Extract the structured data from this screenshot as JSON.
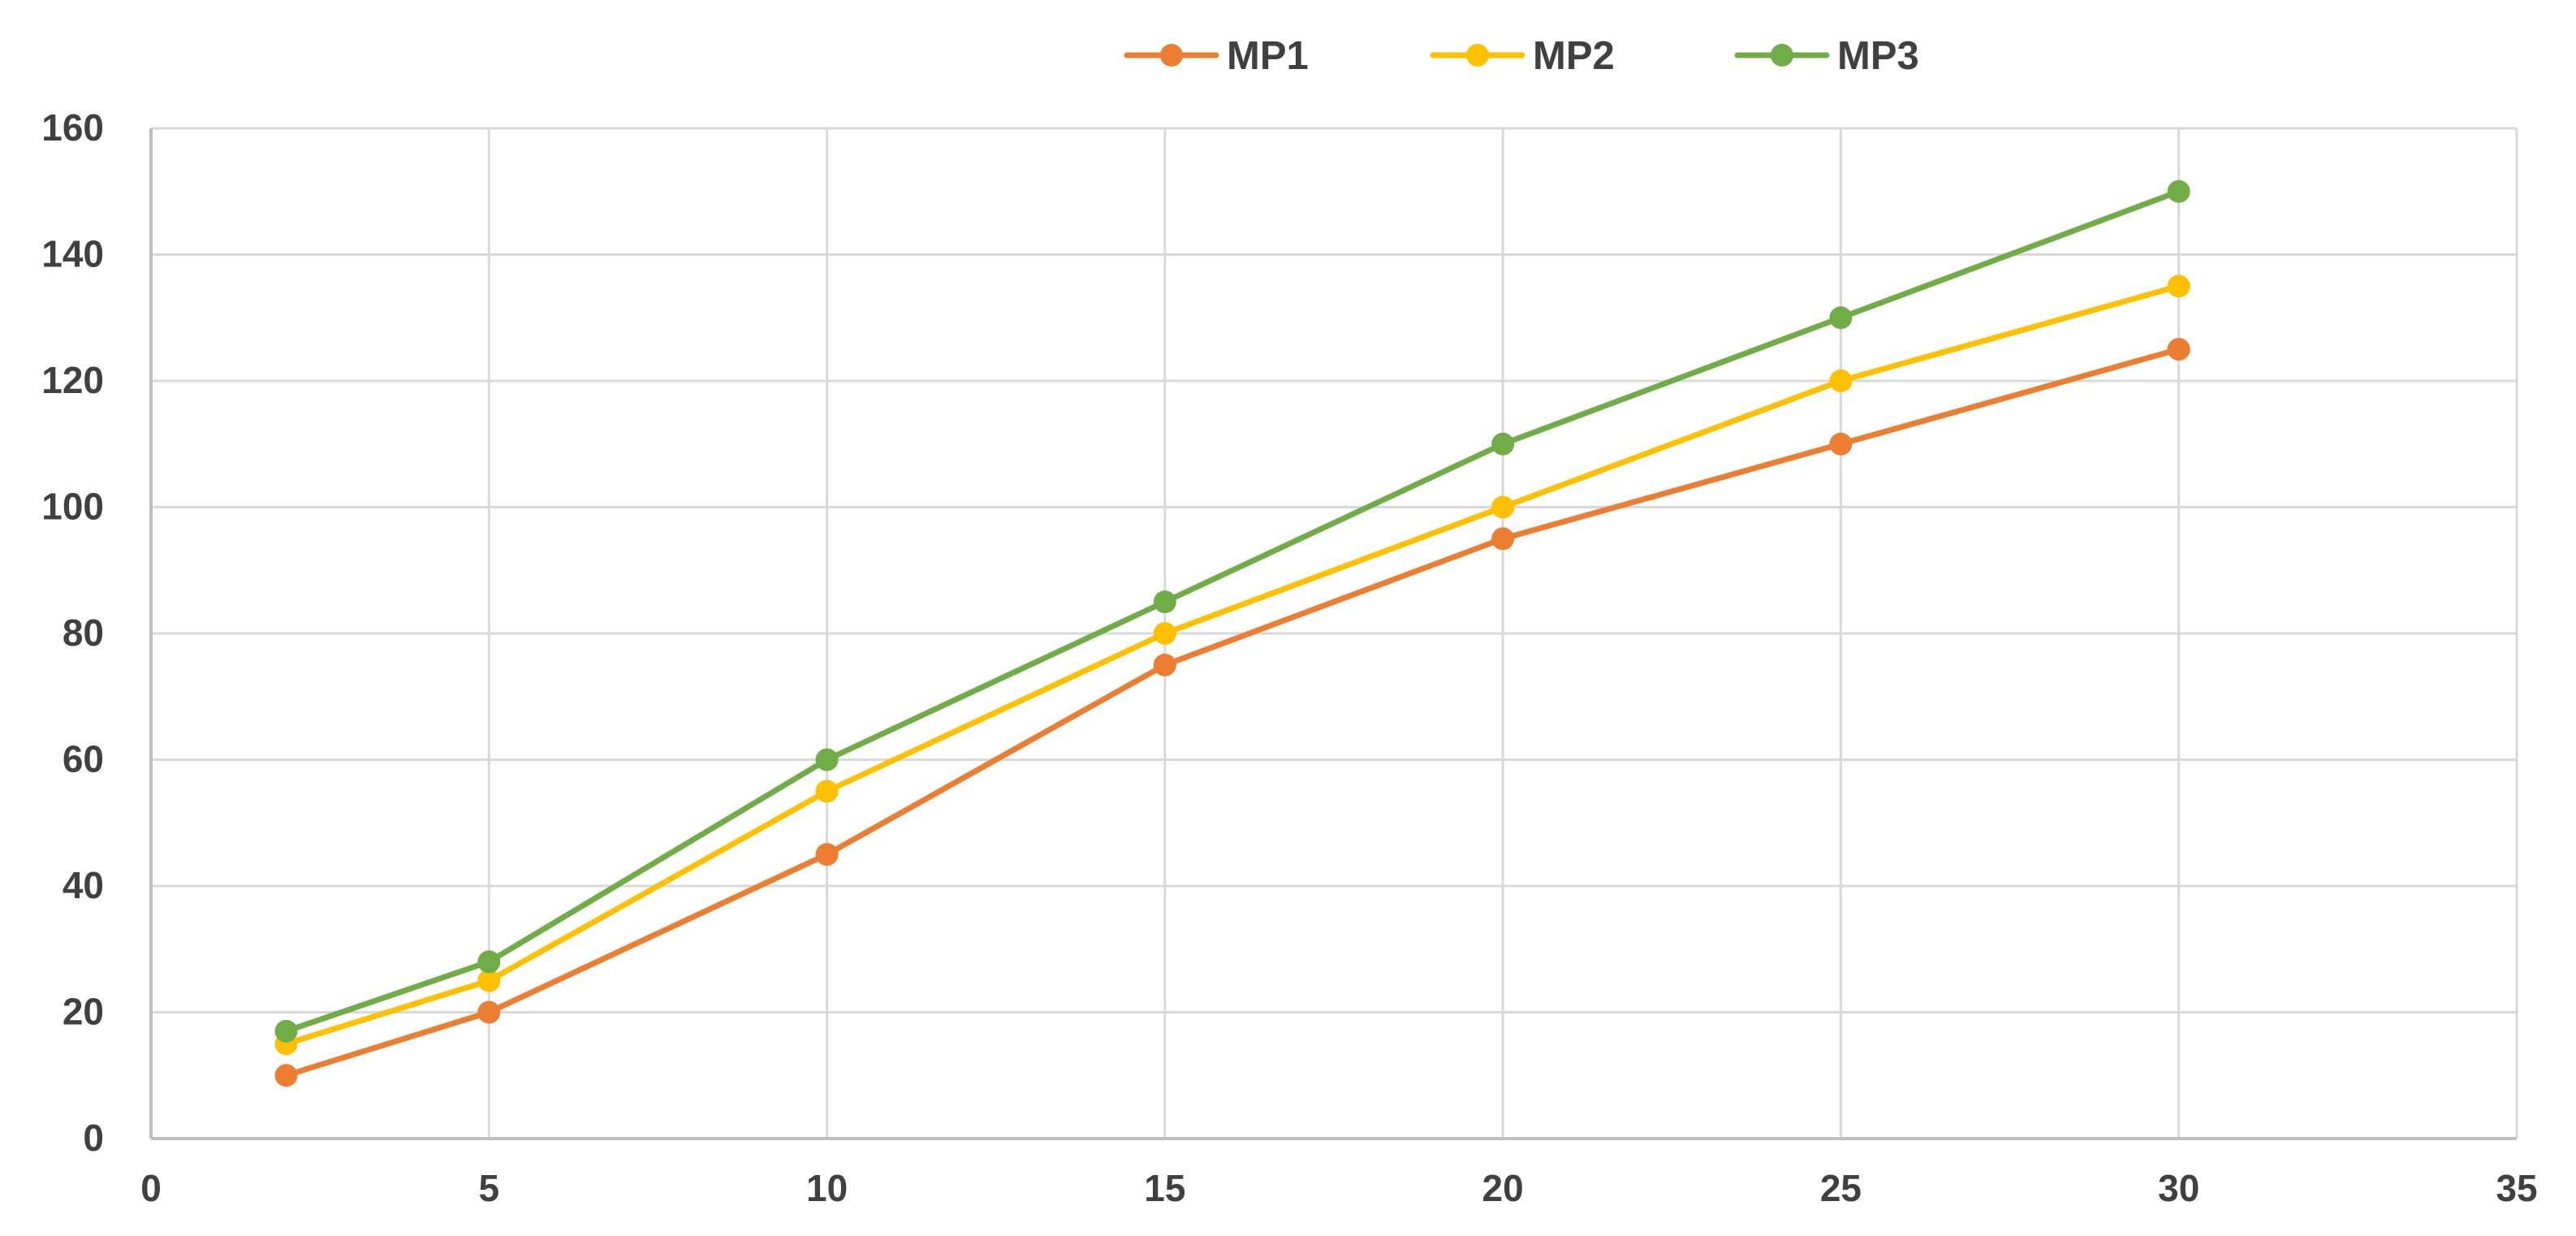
{
  "chart_data": {
    "type": "line",
    "title": "",
    "xlabel": "",
    "ylabel": "",
    "xlim": [
      0,
      35
    ],
    "ylim": [
      0,
      160
    ],
    "x_ticks": [
      "0",
      "5",
      "10",
      "15",
      "20",
      "25",
      "30",
      "35"
    ],
    "y_ticks": [
      "0",
      "20",
      "40",
      "60",
      "80",
      "100",
      "120",
      "140",
      "160"
    ],
    "grid": true,
    "legend_position": "top-center",
    "x": [
      2,
      5,
      10,
      15,
      20,
      25,
      30
    ],
    "series": [
      {
        "name": "MP1",
        "color": "#ED7D31",
        "values": [
          10,
          20,
          45,
          75,
          95,
          110,
          125
        ]
      },
      {
        "name": "MP2",
        "color": "#FFC000",
        "values": [
          15,
          25,
          55,
          80,
          100,
          120,
          135
        ]
      },
      {
        "name": "MP3",
        "color": "#70AD47",
        "values": [
          17,
          28,
          60,
          85,
          110,
          130,
          150
        ]
      }
    ]
  }
}
